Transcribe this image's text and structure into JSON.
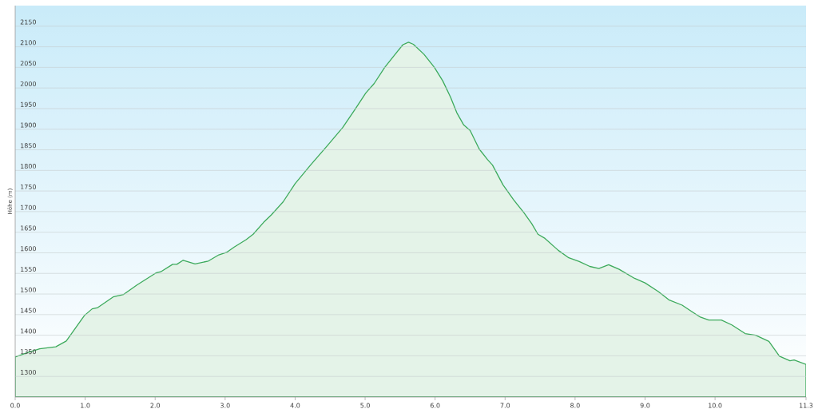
{
  "chart_data": {
    "type": "area",
    "ylabel": "Höhe (m)",
    "x": [
      0,
      0.16,
      0.35,
      0.58,
      0.73,
      0.88,
      0.99,
      1.1,
      1.18,
      1.4,
      1.55,
      1.74,
      2.01,
      2.08,
      2.25,
      2.31,
      2.4,
      2.57,
      2.76,
      2.91,
      3.02,
      3.13,
      3.3,
      3.4,
      3.55,
      3.66,
      3.83,
      4.0,
      4.22,
      4.47,
      4.68,
      4.86,
      5.01,
      5.13,
      5.28,
      5.43,
      5.54,
      5.62,
      5.69,
      5.84,
      5.99,
      6.11,
      6.22,
      6.31,
      6.41,
      6.5,
      6.63,
      6.75,
      6.82,
      6.97,
      7.12,
      7.27,
      7.38,
      7.47,
      7.57,
      7.76,
      7.91,
      8.06,
      8.21,
      8.34,
      8.48,
      8.63,
      8.85,
      9.0,
      9.19,
      9.34,
      9.53,
      9.68,
      9.79,
      9.91,
      10.09,
      10.24,
      10.43,
      10.58,
      10.77,
      10.92,
      11.07,
      11.13,
      11.3
    ],
    "series": [
      {
        "color": "#3daa5c",
        "values": [
          1347,
          1357,
          1367,
          1372,
          1386,
          1422,
          1448,
          1464,
          1467,
          1493,
          1499,
          1522,
          1551,
          1554,
          1572,
          1572,
          1582,
          1573,
          1580,
          1595,
          1601,
          1614,
          1632,
          1645,
          1674,
          1692,
          1724,
          1768,
          1813,
          1862,
          1904,
          1949,
          1988,
          2011,
          2050,
          2082,
          2105,
          2111,
          2106,
          2082,
          2050,
          2017,
          1978,
          1940,
          1910,
          1897,
          1852,
          1826,
          1813,
          1765,
          1729,
          1697,
          1671,
          1645,
          1635,
          1606,
          1588,
          1579,
          1567,
          1562,
          1571,
          1560,
          1538,
          1527,
          1506,
          1486,
          1473,
          1456,
          1444,
          1437,
          1437,
          1425,
          1404,
          1400,
          1385,
          1349,
          1338,
          1340,
          1329
        ]
      }
    ],
    "xlim": [
      0,
      11.3
    ],
    "ylim": [
      1250,
      2200
    ],
    "xticks": [
      {
        "value": 0,
        "label": "0.0"
      },
      {
        "value": 1,
        "label": "1.0"
      },
      {
        "value": 2,
        "label": "2.0"
      },
      {
        "value": 3,
        "label": "3.0"
      },
      {
        "value": 4,
        "label": "4.0"
      },
      {
        "value": 5,
        "label": "5.0"
      },
      {
        "value": 6,
        "label": "6.0"
      },
      {
        "value": 7,
        "label": "7.0"
      },
      {
        "value": 8,
        "label": "8.0"
      },
      {
        "value": 9,
        "label": "9.0"
      },
      {
        "value": 10,
        "label": "10.0"
      },
      11.3
    ],
    "yticks": [
      1300,
      1350,
      1400,
      1450,
      1500,
      1550,
      1600,
      1650,
      1700,
      1750,
      1800,
      1850,
      1900,
      1950,
      2000,
      2050,
      2100,
      2150
    ],
    "grid": "y",
    "line_style": "solid"
  }
}
